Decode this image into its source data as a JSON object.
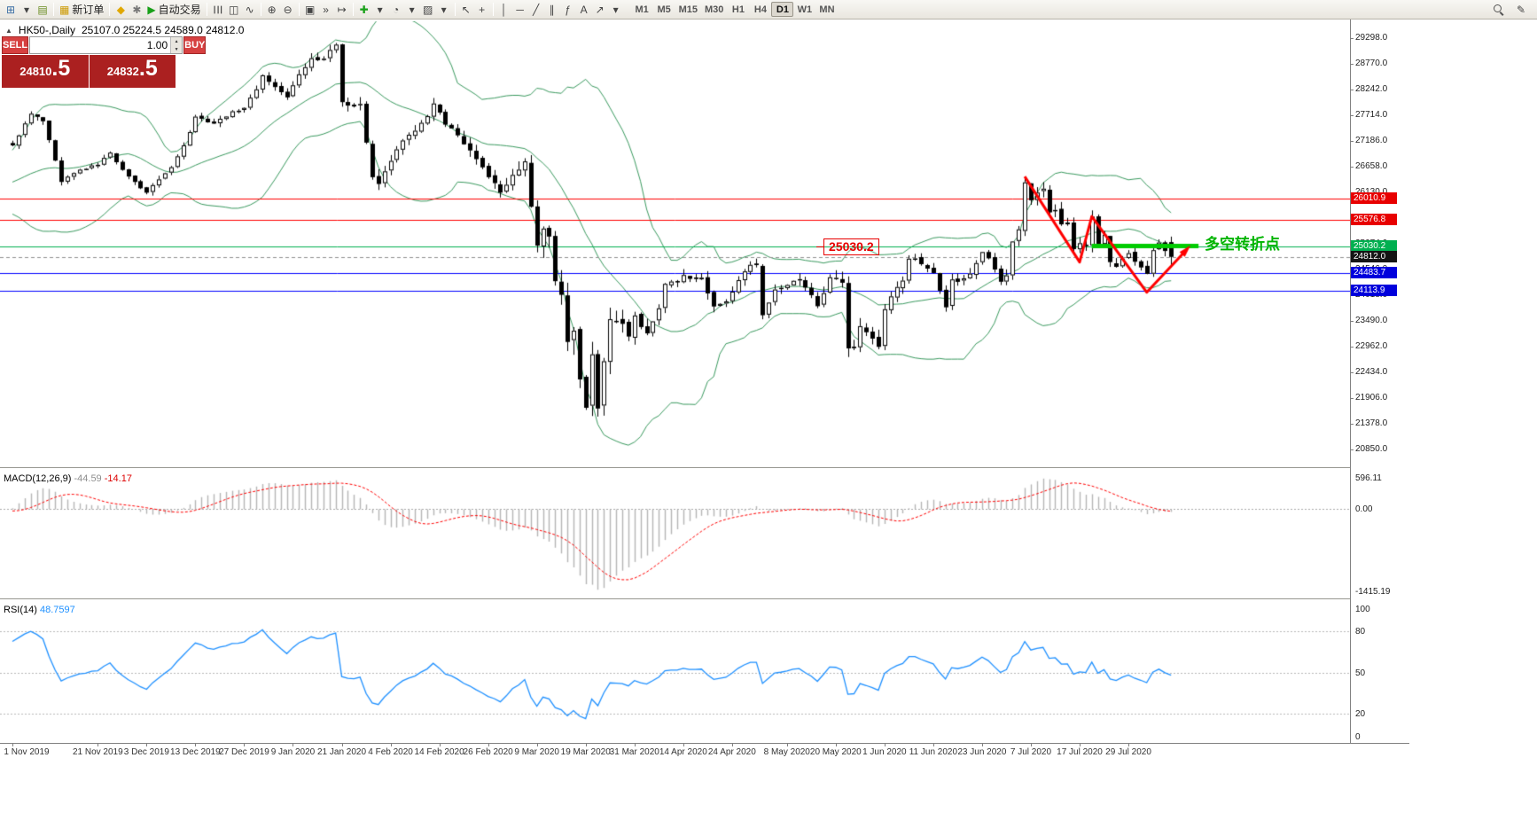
{
  "toolbar": {
    "buttons": [
      {
        "name": "new-chart-button",
        "glyph": "⊞",
        "color": "#3a6ea5"
      },
      {
        "name": "chart-dropdown",
        "glyph": "▾"
      },
      {
        "name": "profiles-button",
        "glyph": "▤",
        "color": "#6b8e23"
      },
      {
        "sep": true
      },
      {
        "name": "new-order-button",
        "glyph": "▦",
        "color": "#cc9900",
        "label": "新订单"
      },
      {
        "sep": true
      },
      {
        "name": "metaeditor-button",
        "glyph": "◆",
        "color": "#e0a800"
      },
      {
        "name": "options-button",
        "glyph": "✱",
        "color": "#777777"
      },
      {
        "name": "autotrading-button",
        "glyph": "▶",
        "color": "#18a018",
        "label": "自动交易"
      },
      {
        "sep": true
      },
      {
        "name": "bars-button",
        "glyph": "☰",
        "rotate": true
      },
      {
        "name": "candles-button",
        "glyph": "◫"
      },
      {
        "name": "line-chart-button",
        "glyph": "∿"
      },
      {
        "sep": true
      },
      {
        "name": "zoom-in-button",
        "glyph": "⊕"
      },
      {
        "name": "zoom-out-button",
        "glyph": "⊖"
      },
      {
        "sep": true
      },
      {
        "name": "tile-windows-button",
        "glyph": "▣"
      },
      {
        "name": "auto-scroll-button",
        "glyph": "»"
      },
      {
        "name": "chart-shift-button",
        "glyph": "↦"
      },
      {
        "sep": true
      },
      {
        "name": "indicators-button",
        "glyph": "✚",
        "color": "#18a018"
      },
      {
        "name": "indicators-dropdown",
        "glyph": "▾"
      },
      {
        "name": "periods-button",
        "glyph": "◔"
      },
      {
        "name": "periods-dropdown",
        "glyph": "▾"
      },
      {
        "name": "templates-button",
        "glyph": "▨"
      },
      {
        "name": "templates-dropdown",
        "glyph": "▾"
      },
      {
        "sep": true
      },
      {
        "name": "cursor-button",
        "glyph": "↖"
      },
      {
        "name": "crosshair-button",
        "glyph": "+"
      },
      {
        "sep": true
      },
      {
        "name": "vertical-line-button",
        "glyph": "│"
      },
      {
        "name": "horizontal-line-button",
        "glyph": "─"
      },
      {
        "name": "trendline-button",
        "glyph": "╱"
      },
      {
        "name": "channel-button",
        "glyph": "∥"
      },
      {
        "name": "fibonacci-button",
        "glyph": "ƒ"
      },
      {
        "name": "text-button",
        "glyph": "A"
      },
      {
        "name": "arrows-button",
        "glyph": "↗"
      },
      {
        "name": "shapes-dropdown",
        "glyph": "▾"
      }
    ],
    "timeframes": [
      "M1",
      "M5",
      "M15",
      "M30",
      "H1",
      "H4",
      "D1",
      "W1",
      "MN"
    ],
    "active_timeframe": "D1"
  },
  "chart": {
    "symbol_label": "HK50-,Daily",
    "ohlc_text": "25107.0 25224.5 24589.0 24812.0",
    "one_click": {
      "sell_label": "SELL",
      "buy_label": "BUY",
      "volume": "1.00",
      "sell_price_main": "24810",
      "sell_price_frac": ".5",
      "buy_price_main": "24832",
      "buy_price_frac": ".5"
    },
    "colors": {
      "background": "#ffffff",
      "foreground": "#000000",
      "bollinger": "#3a9a5f",
      "candle_up": "#ffffff",
      "candle_down": "#000000",
      "macd_hist": "#b6b6b6",
      "macd_signal": "#ff0000",
      "rsi": "#1e90ff"
    },
    "price_axis": {
      "max": 29650,
      "min": 20540,
      "ticks": [
        29298.0,
        28770.0,
        28242.0,
        27714.0,
        27186.0,
        26658.0,
        26130.0,
        25602.0,
        25074.0,
        24546.0,
        24018.0,
        23490.0,
        22962.0,
        22434.0,
        21906.0,
        21378.0,
        20850.0
      ]
    },
    "hlines": [
      {
        "value": 26010.9,
        "label": "26010.9",
        "color": "#ff0000",
        "badge": "#e80000"
      },
      {
        "value": 25576.8,
        "label": "25576.8",
        "color": "#ff0000",
        "badge": "#e80000"
      },
      {
        "value": 25030.2,
        "label": "25030.2",
        "color": "#00b050",
        "badge": "#00b050"
      },
      {
        "value": 24483.7,
        "label": "24483.7",
        "color": "#0000ff",
        "badge": "#0000dc"
      },
      {
        "value": 24113.9,
        "label": "24113.9",
        "color": "#0000ff",
        "badge": "#0000dc"
      }
    ],
    "bid": {
      "value": 24812.0,
      "label": "24812.0",
      "badge": "#141414"
    },
    "annotations": {
      "level_label": {
        "text": "25030.2",
        "bar": 133,
        "value": 25030.2,
        "color": "#e80000"
      },
      "turning_point": {
        "text": "多空转折点",
        "bar": 195.5,
        "value": 25160,
        "color": "#00b400"
      },
      "thick_level": {
        "bar1": 177,
        "bar2": 194.5,
        "value": 25030.2,
        "color": "#00cc00",
        "width": 5
      },
      "zigzag": {
        "color": "#ff0000",
        "width": 3,
        "points": [
          [
            166,
            26460
          ],
          [
            175,
            24700
          ],
          [
            177,
            25640
          ],
          [
            186,
            24080
          ],
          [
            192.5,
            24950
          ]
        ]
      }
    }
  },
  "chart_data": {
    "type": "candlestick",
    "symbol": "HK50-",
    "timeframe": "Daily",
    "main": {
      "bar_count": 191,
      "last_candle": [
        25107.0,
        25224.5,
        24589.0,
        24812.0
      ],
      "close_waypoints": [
        [
          0,
          27100
        ],
        [
          2,
          27550
        ],
        [
          3,
          27750
        ],
        [
          5,
          27600
        ],
        [
          8,
          26350
        ],
        [
          11,
          26600
        ],
        [
          14,
          26700
        ],
        [
          16,
          26950
        ],
        [
          18,
          26600
        ],
        [
          20,
          26350
        ],
        [
          22,
          26130
        ],
        [
          24,
          26400
        ],
        [
          26,
          26650
        ],
        [
          28,
          27100
        ],
        [
          30,
          27690
        ],
        [
          33,
          27550
        ],
        [
          36,
          27800
        ],
        [
          38,
          27870
        ],
        [
          40,
          28250
        ],
        [
          41,
          28540
        ],
        [
          43,
          28300
        ],
        [
          45,
          28090
        ],
        [
          47,
          28560
        ],
        [
          49,
          28890
        ],
        [
          51,
          28880
        ],
        [
          52,
          29060
        ],
        [
          53,
          29170
        ],
        [
          54,
          27990
        ],
        [
          56,
          27900
        ],
        [
          57,
          27950
        ],
        [
          58,
          27160
        ],
        [
          59,
          26450
        ],
        [
          60,
          26310
        ],
        [
          62,
          26780
        ],
        [
          64,
          27200
        ],
        [
          66,
          27400
        ],
        [
          68,
          27700
        ],
        [
          69,
          27960
        ],
        [
          71,
          27530
        ],
        [
          73,
          27310
        ],
        [
          75,
          27000
        ],
        [
          76,
          26820
        ],
        [
          78,
          26450
        ],
        [
          80,
          26130
        ],
        [
          81,
          26290
        ],
        [
          83,
          26600
        ],
        [
          84,
          26770
        ],
        [
          86,
          25040
        ],
        [
          87,
          25390
        ],
        [
          88,
          25230
        ],
        [
          89,
          24310
        ],
        [
          90,
          24032
        ],
        [
          91,
          23064
        ],
        [
          92,
          23290
        ],
        [
          93,
          22292
        ],
        [
          94,
          21709
        ],
        [
          95,
          22805
        ],
        [
          96,
          21696
        ],
        [
          97,
          22663
        ],
        [
          98,
          23527
        ],
        [
          99,
          23484
        ],
        [
          100,
          23434
        ],
        [
          101,
          23175
        ],
        [
          102,
          23603
        ],
        [
          104,
          23236
        ],
        [
          106,
          23750
        ],
        [
          107,
          24253
        ],
        [
          109,
          24300
        ],
        [
          110,
          24435
        ],
        [
          112,
          24360
        ],
        [
          113,
          24380
        ],
        [
          115,
          23793
        ],
        [
          117,
          23893
        ],
        [
          119,
          24330
        ],
        [
          121,
          24644
        ],
        [
          122,
          24643
        ],
        [
          123,
          23613
        ],
        [
          124,
          23868
        ],
        [
          125,
          24137
        ],
        [
          127,
          24230
        ],
        [
          129,
          24350
        ],
        [
          130,
          24180
        ],
        [
          132,
          23797
        ],
        [
          134,
          24388
        ],
        [
          136,
          24280
        ],
        [
          137,
          22930
        ],
        [
          138,
          22952
        ],
        [
          139,
          23384
        ],
        [
          141,
          23132
        ],
        [
          142,
          22961
        ],
        [
          143,
          23732
        ],
        [
          144,
          23996
        ],
        [
          146,
          24320
        ],
        [
          147,
          24770
        ],
        [
          148,
          24776
        ],
        [
          151,
          24480
        ],
        [
          153,
          23776
        ],
        [
          154,
          24344
        ],
        [
          155,
          24298
        ],
        [
          157,
          24464
        ],
        [
          159,
          24907
        ],
        [
          160,
          24781
        ],
        [
          161,
          24550
        ],
        [
          162,
          24301
        ],
        [
          163,
          24427
        ],
        [
          164,
          25124
        ],
        [
          165,
          25373
        ],
        [
          166,
          26339
        ],
        [
          167,
          25975
        ],
        [
          168,
          26129
        ],
        [
          169,
          26210
        ],
        [
          170,
          25727
        ],
        [
          171,
          25772
        ],
        [
          172,
          25477
        ],
        [
          173,
          25481
        ],
        [
          174,
          24970
        ],
        [
          175,
          25089
        ],
        [
          176,
          25057
        ],
        [
          177,
          25635
        ],
        [
          178,
          25059
        ],
        [
          179,
          25263
        ],
        [
          180,
          24705
        ],
        [
          181,
          24603
        ],
        [
          182,
          24772
        ],
        [
          183,
          24883
        ],
        [
          184,
          24710
        ],
        [
          185,
          24595
        ],
        [
          186,
          24458
        ],
        [
          187,
          24946
        ],
        [
          188,
          25102
        ],
        [
          189,
          24930
        ],
        [
          190,
          24812
        ]
      ],
      "vol_waypoints": [
        [
          0,
          150
        ],
        [
          20,
          140
        ],
        [
          40,
          150
        ],
        [
          53,
          220
        ],
        [
          58,
          300
        ],
        [
          63,
          240
        ],
        [
          73,
          230
        ],
        [
          80,
          300
        ],
        [
          86,
          430
        ],
        [
          90,
          480
        ],
        [
          94,
          650
        ],
        [
          97,
          520
        ],
        [
          100,
          400
        ],
        [
          105,
          300
        ],
        [
          110,
          260
        ],
        [
          116,
          230
        ],
        [
          122,
          220
        ],
        [
          126,
          240
        ],
        [
          131,
          220
        ],
        [
          136,
          320
        ],
        [
          137,
          450
        ],
        [
          140,
          300
        ],
        [
          145,
          230
        ],
        [
          150,
          230
        ],
        [
          155,
          210
        ],
        [
          160,
          210
        ],
        [
          164,
          240
        ],
        [
          166,
          340
        ],
        [
          170,
          280
        ],
        [
          175,
          260
        ],
        [
          178,
          260
        ],
        [
          183,
          230
        ],
        [
          190,
          210
        ]
      ],
      "date_labels": [
        [
          "1 Nov 2019",
          0
        ],
        [
          "21 Nov 2019",
          14
        ],
        [
          "3 Dec 2019",
          22
        ],
        [
          "13 Dec 2019",
          30
        ],
        [
          "27 Dec 2019",
          38
        ],
        [
          "9 Jan 2020",
          46
        ],
        [
          "21 Jan 2020",
          54
        ],
        [
          "4 Feb 2020",
          62
        ],
        [
          "14 Feb 2020",
          70
        ],
        [
          "26 Feb 2020",
          78
        ],
        [
          "9 Mar 2020",
          86
        ],
        [
          "19 Mar 2020",
          94
        ],
        [
          "31 Mar 2020",
          102
        ],
        [
          "14 Apr 2020",
          110
        ],
        [
          "24 Apr 2020",
          118
        ],
        [
          "8 May 2020",
          127
        ],
        [
          "20 May 2020",
          135
        ],
        [
          "1 Jun 2020",
          143
        ],
        [
          "11 Jun 2020",
          151
        ],
        [
          "23 Jun 2020",
          159
        ],
        [
          "7 Jul 2020",
          167
        ],
        [
          "17 Jul 2020",
          175
        ],
        [
          "29 Jul 2020",
          183
        ]
      ]
    },
    "bollinger": {
      "period": 20,
      "deviation": 2
    },
    "macd": {
      "name": "MACD(12,26,9)",
      "main_value": "-44.59",
      "signal_value": "-14.17",
      "params": [
        12,
        26,
        9
      ],
      "scale_max": 596.11,
      "scale_min": -1415.19,
      "axis": [
        {
          "v": 596.11,
          "label": "596.11"
        },
        {
          "v": 0,
          "label": "0.00"
        },
        {
          "v": -1415.19,
          "label": "-1415.19"
        }
      ]
    },
    "rsi": {
      "name": "RSI(14)",
      "value_text": "48.7597",
      "period": 14,
      "levels": [
        80,
        50,
        20
      ],
      "axis": [
        {
          "v": 100,
          "label": "100"
        },
        {
          "v": 80,
          "label": "80"
        },
        {
          "v": 50,
          "label": "50"
        },
        {
          "v": 20,
          "label": "20"
        },
        {
          "v": 0,
          "label": "0"
        }
      ]
    }
  }
}
